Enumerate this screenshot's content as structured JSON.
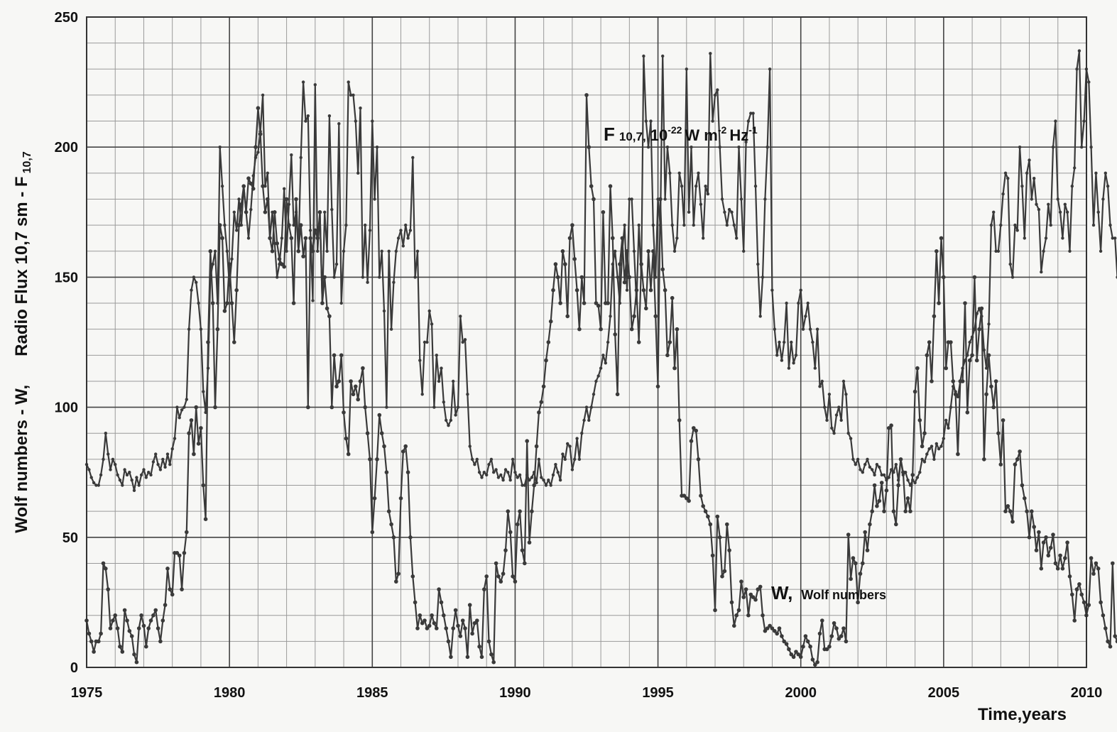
{
  "chart_data": {
    "type": "line",
    "title": "",
    "xlabel": "Time,years",
    "ylabel": "Wolf numbers  - W,     Radio Flux 10,7 sm  -  F 10,7",
    "ylabel_left": "Wolf numbers  - W,",
    "ylabel_right": "Radio Flux 10,7 sm  -  F",
    "ylabel_sub": "10,7",
    "xlim": [
      1975,
      2010
    ],
    "ylim": [
      0,
      250
    ],
    "x_ticks": [
      1975,
      1980,
      1985,
      1990,
      1995,
      2000,
      2005,
      2010
    ],
    "y_ticks": [
      0,
      50,
      100,
      150,
      200,
      250
    ],
    "grid": true,
    "legend": "inline labels",
    "line_color": "#3a3a3a",
    "annotations": {
      "f107": {
        "main": "F",
        "sub": "10,7,",
        "text1": "10",
        "sup1": "-22",
        "text2": "W m",
        "sup2": "-2",
        "text3": "Hz",
        "sup3": "-1"
      },
      "wolf": {
        "main": "W,",
        "sub": "Wolf numbers"
      }
    },
    "series": [
      {
        "name": "F 10,7",
        "x_start": 1975.0,
        "x_step": 0.08333,
        "values": [
          78,
          76,
          73,
          71,
          70,
          70,
          74,
          80,
          90,
          82,
          76,
          80,
          78,
          74,
          72,
          70,
          76,
          74,
          75,
          72,
          68,
          73,
          70,
          74,
          76,
          73,
          75,
          74,
          79,
          82,
          78,
          76,
          80,
          77,
          82,
          78,
          84,
          88,
          100,
          96,
          99,
          100,
          103,
          130,
          145,
          150,
          148,
          140,
          130,
          106,
          98,
          115,
          150,
          155,
          160,
          140,
          200,
          185,
          170,
          160,
          147,
          157,
          175,
          168,
          180,
          170,
          185,
          175,
          165,
          176,
          189,
          196,
          198,
          206,
          220,
          185,
          190,
          165,
          175,
          163,
          150,
          155,
          165,
          184,
          160,
          178,
          197,
          170,
          175,
          160,
          196,
          225,
          210,
          212,
          168,
          141,
          224,
          160,
          175,
          140,
          175,
          160,
          212,
          176,
          150,
          155,
          209,
          140,
          160,
          170,
          225,
          220,
          220,
          210,
          190,
          215,
          150,
          170,
          148,
          168,
          210,
          180,
          200,
          150,
          160,
          137,
          100,
          160,
          130,
          148,
          160,
          165,
          168,
          162,
          170,
          165,
          168,
          196,
          150,
          160,
          118,
          105,
          125,
          125,
          137,
          132,
          100,
          120,
          110,
          115,
          102,
          95,
          93,
          95,
          110,
          97,
          100,
          135,
          125,
          126,
          105,
          85,
          80,
          78,
          80,
          75,
          73,
          75,
          74,
          78,
          80,
          75,
          76,
          73,
          74,
          72,
          76,
          75,
          72,
          80,
          75,
          73,
          74,
          70,
          70,
          74,
          72,
          73,
          75,
          71,
          80,
          73,
          72,
          70,
          72,
          70,
          74,
          78,
          75,
          72,
          82,
          80,
          86,
          85,
          76,
          80,
          88,
          80,
          90,
          95,
          100,
          95,
          100,
          105,
          110,
          112,
          115,
          120,
          117,
          125,
          135,
          155,
          160,
          150,
          140,
          160,
          170,
          145,
          180,
          180,
          160,
          140,
          170,
          150,
          235,
          210,
          200,
          210,
          170,
          150,
          180,
          170,
          235,
          180,
          200,
          190,
          170,
          160,
          165,
          190,
          185,
          170,
          230,
          175,
          200,
          170,
          185,
          190,
          178,
          165,
          185,
          182,
          236,
          210,
          220,
          222,
          200,
          180,
          175,
          170,
          176,
          175,
          170,
          165,
          200,
          180,
          160,
          202,
          210,
          213,
          213,
          185,
          155,
          135,
          150,
          180,
          200,
          230,
          145,
          130,
          120,
          125,
          118,
          125,
          140,
          115,
          125,
          117,
          120,
          140,
          145,
          130,
          135,
          140,
          130,
          125,
          115,
          130,
          108,
          110,
          100,
          95,
          105,
          92,
          90,
          97,
          100,
          95,
          110,
          105,
          90,
          88,
          80,
          78,
          80,
          76,
          75,
          78,
          80,
          77,
          76,
          74,
          78,
          77,
          74,
          74,
          72,
          73,
          76,
          75,
          78,
          72,
          80,
          74,
          75,
          72,
          70,
          72,
          71,
          73,
          75,
          80,
          79,
          82,
          84,
          85,
          80,
          86,
          84,
          85,
          88,
          95,
          92,
          100,
          108,
          106,
          104,
          110,
          115,
          118,
          120,
          125,
          127,
          130,
          136,
          138,
          135,
          122,
          115,
          132,
          170,
          175,
          160,
          160,
          170,
          182,
          190,
          188,
          155,
          150,
          170,
          168,
          200,
          185,
          165,
          190,
          195,
          180,
          188,
          178,
          176,
          152,
          160,
          165,
          178,
          170,
          200,
          210,
          180,
          175,
          165,
          178,
          175,
          160,
          185,
          192,
          230,
          237,
          200,
          210,
          230,
          225,
          200,
          170,
          190,
          175,
          160,
          180,
          190,
          185,
          170,
          165,
          165,
          150,
          145,
          140,
          130,
          122,
          126,
          124,
          125,
          128,
          132,
          130,
          128,
          120,
          145,
          150,
          120,
          112,
          108,
          110,
          105,
          100,
          105,
          108,
          103,
          110,
          106,
          105,
          100,
          92,
          90,
          95,
          100,
          101,
          100,
          105,
          108,
          95,
          90,
          92,
          97,
          88,
          85,
          93,
          95,
          92,
          90,
          92,
          92,
          96,
          95,
          97,
          98,
          90,
          88,
          82,
          81,
          85,
          88,
          86,
          84,
          82,
          80,
          78,
          80,
          85,
          86
        ]
      },
      {
        "name": "W",
        "x_start": 1975.0,
        "x_step": 0.08333,
        "values": [
          18,
          13,
          10,
          6,
          10,
          10,
          13,
          40,
          38,
          30,
          15,
          18,
          20,
          15,
          8,
          6,
          22,
          18,
          14,
          12,
          5,
          2,
          15,
          20,
          16,
          8,
          15,
          18,
          20,
          22,
          15,
          10,
          18,
          24,
          38,
          30,
          28,
          44,
          44,
          43,
          30,
          44,
          52,
          90,
          95,
          82,
          100,
          86,
          92,
          70,
          57,
          125,
          160,
          140,
          100,
          130,
          170,
          165,
          137,
          140,
          155,
          140,
          125,
          145,
          170,
          178,
          185,
          175,
          188,
          186,
          184,
          200,
          215,
          205,
          185,
          175,
          180,
          165,
          160,
          175,
          163,
          157,
          155,
          154,
          180,
          170,
          165,
          140,
          180,
          160,
          170,
          158,
          165,
          100,
          165,
          160,
          168,
          165,
          175,
          140,
          150,
          138,
          135,
          100,
          120,
          108,
          110,
          120,
          98,
          88,
          82,
          110,
          105,
          108,
          103,
          110,
          115,
          100,
          90,
          80,
          52,
          65,
          80,
          97,
          90,
          85,
          75,
          60,
          55,
          50,
          33,
          36,
          65,
          83,
          85,
          75,
          50,
          35,
          25,
          15,
          20,
          17,
          18,
          15,
          16,
          20,
          17,
          15,
          30,
          25,
          20,
          15,
          10,
          4,
          15,
          22,
          16,
          12,
          18,
          15,
          4,
          24,
          13,
          17,
          18,
          8,
          4,
          30,
          35,
          10,
          5,
          2,
          40,
          35,
          33,
          36,
          45,
          60,
          52,
          35,
          33,
          55,
          60,
          45,
          40,
          87,
          48,
          60,
          70,
          85,
          98,
          102,
          108,
          118,
          125,
          133,
          145,
          155,
          150,
          140,
          160,
          155,
          135,
          165,
          170,
          157,
          145,
          130,
          150,
          140,
          220,
          200,
          185,
          180,
          140,
          139,
          130,
          175,
          140,
          140,
          185,
          165,
          128,
          105,
          155,
          165,
          148,
          160,
          150,
          130,
          135,
          145,
          125,
          155,
          145,
          138,
          160,
          145,
          160,
          135,
          108,
          180,
          153,
          145,
          120,
          125,
          142,
          115,
          130,
          95,
          66,
          66,
          65,
          64,
          87,
          92,
          91,
          80,
          66,
          62,
          60,
          58,
          55,
          43,
          22,
          58,
          50,
          35,
          37,
          55,
          45,
          25,
          16,
          20,
          22,
          33,
          27,
          30,
          20,
          28,
          27,
          26,
          30,
          31,
          20,
          14,
          15,
          16,
          15,
          14,
          13,
          15,
          12,
          10,
          9,
          7,
          5,
          4,
          6,
          5,
          4,
          8,
          12,
          10,
          8,
          3,
          1,
          2,
          13,
          18,
          7,
          7,
          8,
          12,
          17,
          15,
          11,
          12,
          15,
          10,
          51,
          34,
          42,
          40,
          25,
          36,
          40,
          52,
          45,
          55,
          60,
          70,
          62,
          64,
          71,
          60,
          68,
          92,
          93,
          60,
          55,
          70,
          80,
          75,
          60,
          65,
          60,
          74,
          106,
          115,
          95,
          85,
          90,
          120,
          125,
          110,
          135,
          160,
          140,
          165,
          150,
          115,
          125,
          125,
          110,
          105,
          82,
          110,
          110,
          140,
          98,
          118,
          120,
          150,
          118,
          130,
          138,
          80,
          105,
          120,
          108,
          100,
          110,
          90,
          78,
          95,
          60,
          62,
          60,
          56,
          78,
          80,
          83,
          70,
          65,
          60,
          50,
          60,
          54,
          45,
          52,
          38,
          48,
          50,
          43,
          46,
          51,
          40,
          38,
          43,
          38,
          42,
          48,
          35,
          28,
          18,
          30,
          32,
          28,
          25,
          20,
          24,
          42,
          36,
          40,
          38,
          25,
          20,
          15,
          10,
          8,
          40,
          12,
          10,
          20,
          12,
          13,
          15,
          12,
          18,
          15,
          13,
          8,
          10,
          12,
          8,
          5,
          4,
          12,
          13,
          12,
          8,
          3,
          2,
          1,
          3,
          10
        ]
      }
    ]
  }
}
